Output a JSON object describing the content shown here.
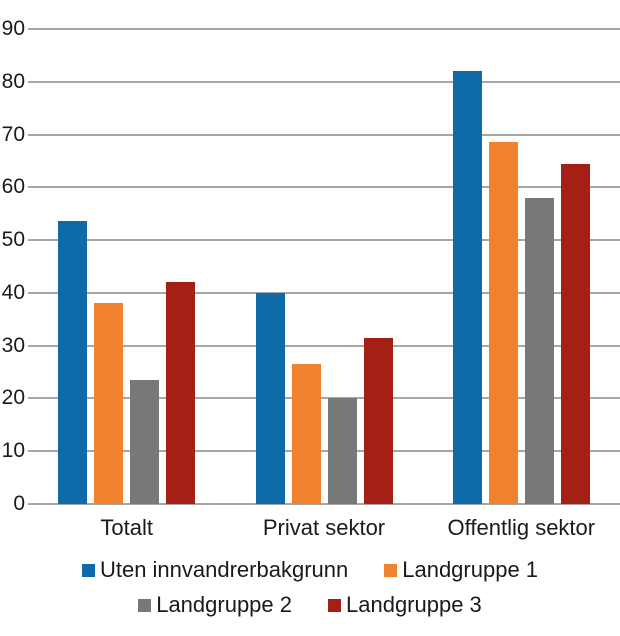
{
  "chart_data": {
    "type": "bar",
    "title": "",
    "categories": [
      "Totalt",
      "Privat sektor",
      "Offentlig sektor"
    ],
    "series": [
      {
        "name": "Uten innvandrerbakgrunn",
        "color": "#0e6aa8",
        "values": [
          53.7,
          40,
          82
        ]
      },
      {
        "name": "Landgruppe 1",
        "color": "#f0812d",
        "values": [
          38,
          26.5,
          68.5
        ]
      },
      {
        "name": "Landgruppe 2",
        "color": "#787878",
        "values": [
          23.5,
          20,
          58
        ]
      },
      {
        "name": "Landgruppe 3",
        "color": "#a42015",
        "values": [
          42,
          31.5,
          64.5
        ]
      }
    ],
    "xlabel": "",
    "ylabel": "",
    "ylim": [
      0,
      90
    ],
    "ytick_step": 10,
    "ytick_labels": [
      "0",
      "10",
      "20",
      "30",
      "40",
      "50",
      "60",
      "70",
      "80",
      "90"
    ],
    "grid": true,
    "gridline_color": "#a6a6a6",
    "legend_position": "bottom",
    "legend_items_per_row": 2
  },
  "colors": {
    "background": "#ffffff",
    "text": "#1a1a1a"
  }
}
